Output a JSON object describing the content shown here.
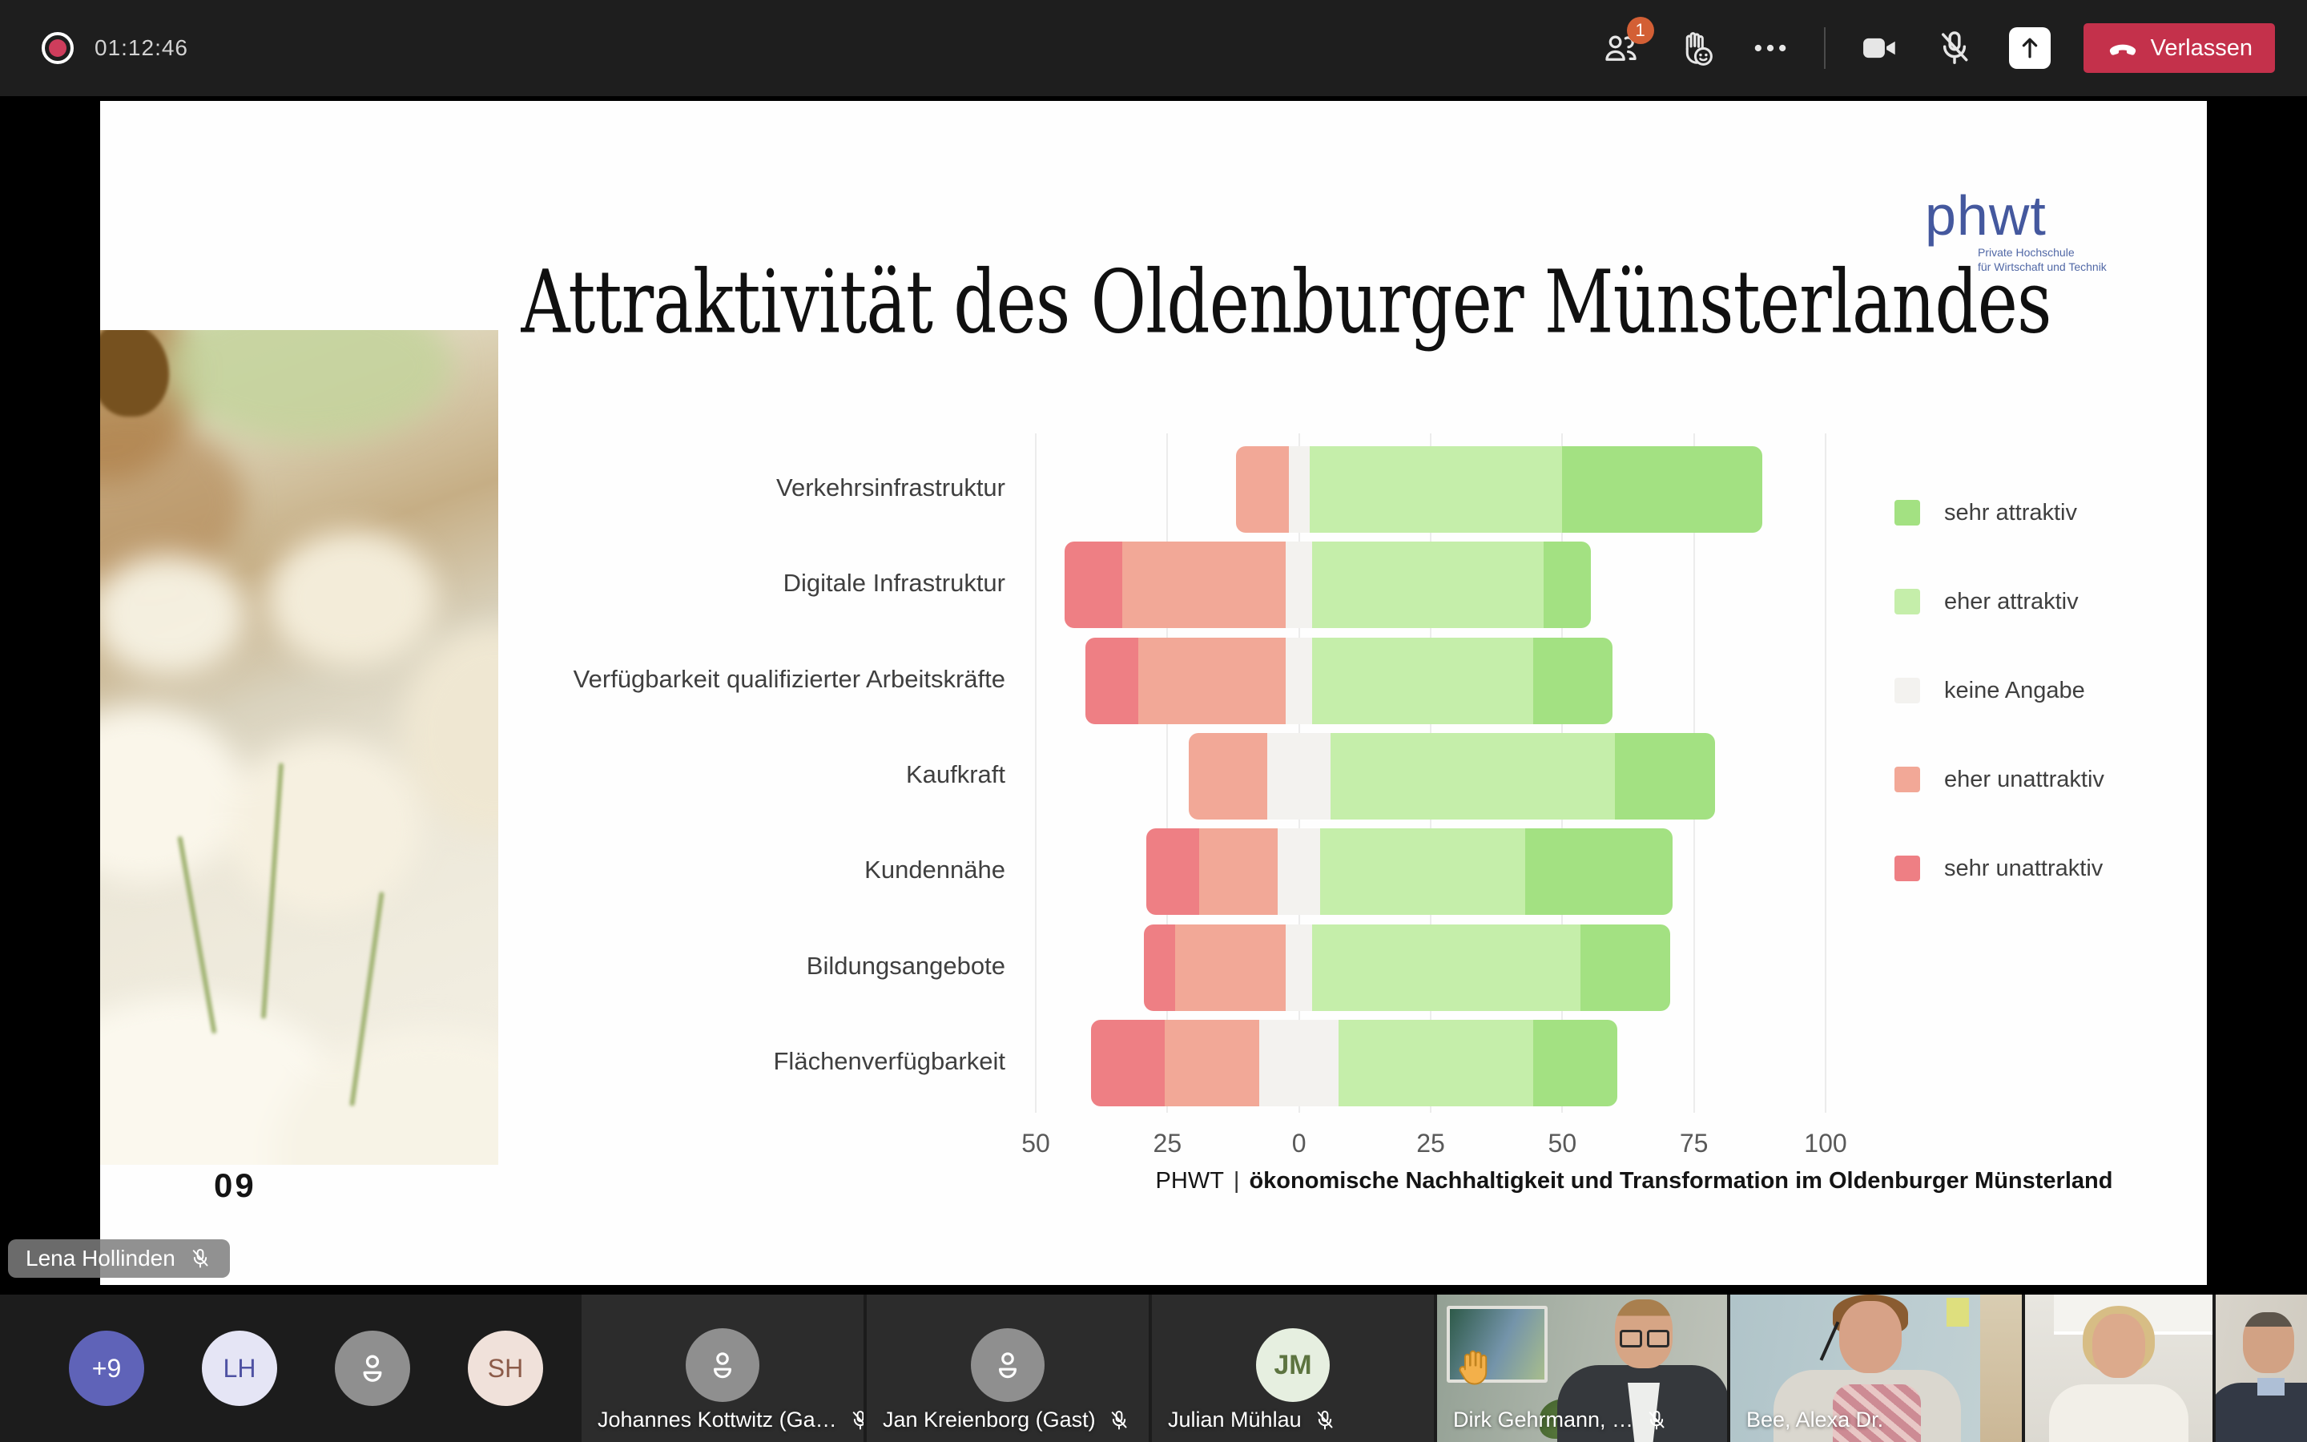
{
  "meeting": {
    "timer": "01:12:46",
    "participants_badge": "1",
    "leave_label": "Verlassen"
  },
  "slide": {
    "logo": {
      "wordmark": "phwt",
      "tagline_line1": "Private Hochschule",
      "tagline_line2": "für Wirtschaft und Technik"
    },
    "title": "Attraktivität des Oldenburger Münsterlandes",
    "page_number": "09",
    "footer_prefix": "PHWT",
    "footer_separator": "|",
    "footer_text": "ökonomische Nachhaltigkeit und Transformation im Oldenburger Münsterland"
  },
  "chart_data": {
    "type": "bar",
    "orientation": "horizontal",
    "stacked": true,
    "diverging": true,
    "title": "Attraktivität des Oldenburger Münsterlandes",
    "categories": [
      "Verkehrsinfrastruktur",
      "Digitale Infrastruktur",
      "Verfügbarkeit qualifizierter Arbeitskräfte",
      "Kaufkraft",
      "Kundennähe",
      "Bildungsangebote",
      "Flächenverfügbarkeit"
    ],
    "series": [
      {
        "name": "sehr unattraktiv",
        "color": "#ee7f84",
        "values": [
          0,
          11,
          10,
          0,
          10,
          6,
          14
        ]
      },
      {
        "name": "eher unattraktiv",
        "color": "#f2a897",
        "values": [
          10,
          31,
          28,
          15,
          15,
          21,
          18
        ]
      },
      {
        "name": "keine Angabe",
        "color": "#f3f2ef",
        "values": [
          4,
          5,
          5,
          12,
          8,
          5,
          15
        ]
      },
      {
        "name": "eher attraktiv",
        "color": "#c5eeaa",
        "values": [
          48,
          44,
          42,
          54,
          39,
          51,
          37
        ]
      },
      {
        "name": "sehr attraktiv",
        "color": "#a3e182",
        "values": [
          38,
          9,
          15,
          19,
          28,
          17,
          16
        ]
      }
    ],
    "values_unit": "percent",
    "xlim": [
      -50,
      100
    ],
    "x_ticks": [
      -50,
      -25,
      0,
      25,
      50,
      75,
      100
    ],
    "x_tick_labels": [
      "50",
      "25",
      "0",
      "25",
      "50",
      "75",
      "100"
    ],
    "grid": true,
    "legend_position": "right",
    "legend": [
      {
        "label": "sehr attraktiv",
        "color": "#a3e182"
      },
      {
        "label": "eher attraktiv",
        "color": "#c5eeaa"
      },
      {
        "label": "keine Angabe",
        "color": "#f3f2ef"
      },
      {
        "label": "eher unattraktiv",
        "color": "#f2a897"
      },
      {
        "label": "sehr unattraktiv",
        "color": "#ee7f84"
      }
    ],
    "layout_note": "bar left edge = -(sehr unattraktiv + eher unattraktiv + keine Angabe/2)"
  },
  "presenter_overlay": {
    "name": "Lena Hollinden",
    "muted": true
  },
  "participants_bar": {
    "avatars": [
      {
        "label": "+9",
        "bg": "#5f63b8",
        "fg": "#ffffff"
      },
      {
        "label": "LH",
        "bg": "#e5e5f5",
        "fg": "#4f52a3"
      },
      {
        "label": "",
        "bg": "#8f8f8f",
        "fg": "#ffffff"
      },
      {
        "label": "SH",
        "bg": "#f0e1da",
        "fg": "#8c5b49"
      }
    ],
    "tiles": [
      {
        "name": "Johannes Kottwitz (Ga…",
        "muted": true
      },
      {
        "name": "Jan Kreienborg (Gast)",
        "muted": true
      },
      {
        "name": "Julian Mühlau",
        "initials": "JM",
        "muted": true
      },
      {
        "name": "Dirk Gehrmann, …",
        "muted": true,
        "hand_raised": true
      },
      {
        "name": "Bee, Alexa Dr.",
        "muted": false
      },
      {
        "name": "",
        "muted": false
      },
      {
        "name": "",
        "muted": false
      }
    ]
  }
}
